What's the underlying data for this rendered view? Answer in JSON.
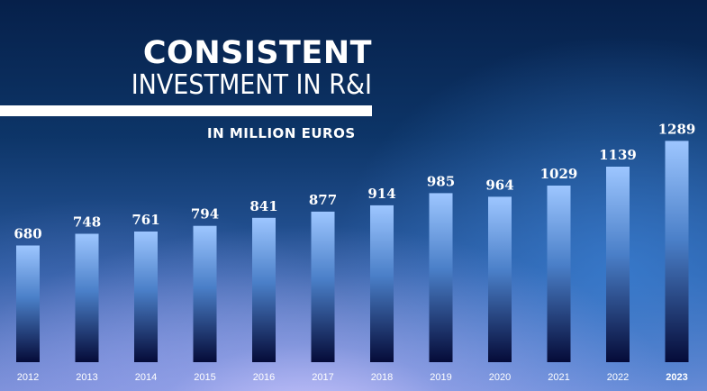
{
  "header": {
    "title": "CONSISTENT",
    "subtitle_line": "INVESTMENT IN R&I",
    "unit_label": "IN MILLION EUROS"
  },
  "chart_data": {
    "type": "bar",
    "title": "CONSISTENT INVESTMENT IN R&I",
    "subtitle": "IN MILLION EUROS",
    "categories": [
      "2012",
      "2013",
      "2014",
      "2015",
      "2016",
      "2017",
      "2018",
      "2019",
      "2020",
      "2021",
      "2022",
      "2023"
    ],
    "values": [
      680,
      748,
      761,
      794,
      841,
      877,
      914,
      985,
      964,
      1029,
      1139,
      1289
    ],
    "highlight_category": "2023",
    "xlabel": "",
    "ylabel": "",
    "grid": false,
    "legend": "none",
    "colors": {
      "bar_top": "#9dc6ff",
      "bar_mid": "#4a7fc8",
      "bar_bottom": "#050b38",
      "text": "#ffffff"
    }
  }
}
